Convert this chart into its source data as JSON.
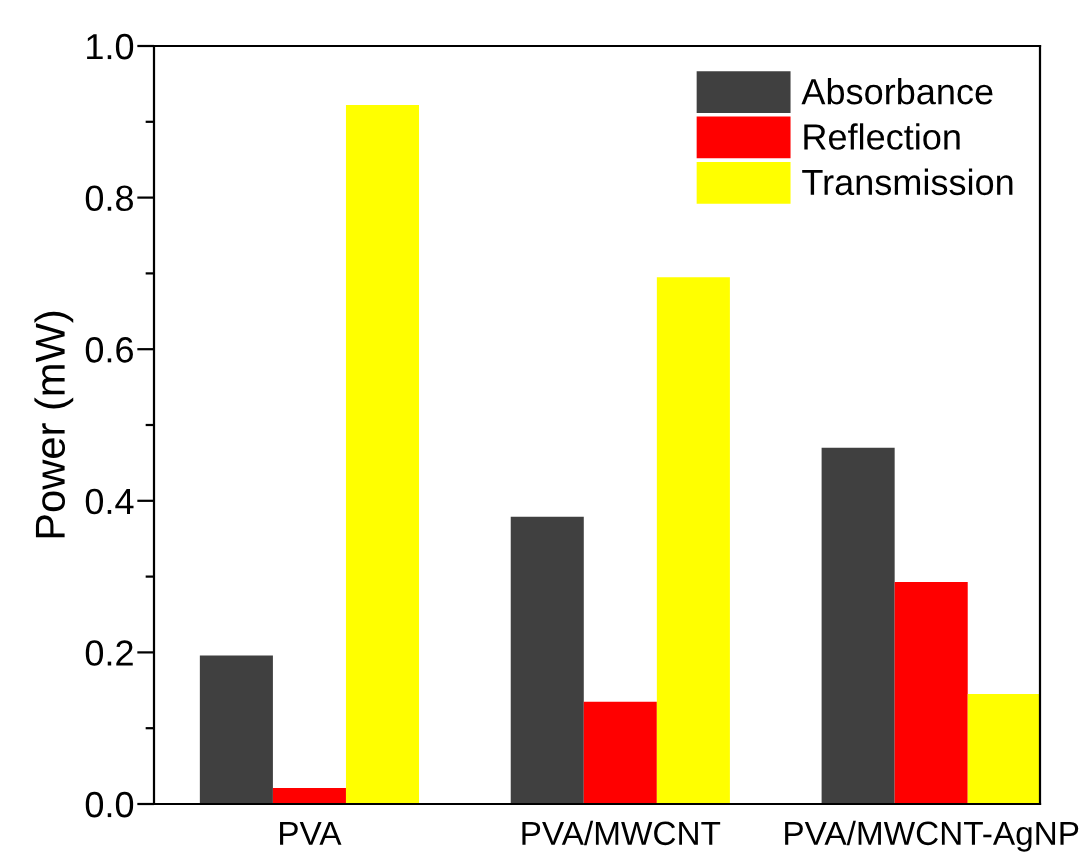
{
  "chart_data": {
    "type": "bar",
    "ylabel": "Power (mW)",
    "categories": [
      "PVA",
      "PVA/MWCNT",
      "PVA/MWCNT-AgNP"
    ],
    "series": [
      {
        "name": "Absorbance",
        "color": "#404040",
        "values": [
          0.196,
          0.379,
          0.47
        ]
      },
      {
        "name": "Reflection",
        "color": "#ff0000",
        "values": [
          0.021,
          0.135,
          0.293
        ]
      },
      {
        "name": "Transmission",
        "color": "#ffff00",
        "values": [
          0.922,
          0.695,
          0.145
        ]
      }
    ],
    "ylim": [
      0,
      1.0
    ],
    "yticks": [
      {
        "value": 0.0,
        "label": "0.0"
      },
      {
        "value": 0.1,
        "label": null
      },
      {
        "value": 0.2,
        "label": "0.2"
      },
      {
        "value": 0.3,
        "label": null
      },
      {
        "value": 0.4,
        "label": "0.4"
      },
      {
        "value": 0.5,
        "label": null
      },
      {
        "value": 0.6,
        "label": "0.6"
      },
      {
        "value": 0.7,
        "label": null
      },
      {
        "value": 0.8,
        "label": "0.8"
      },
      {
        "value": 0.9,
        "label": null
      },
      {
        "value": 1.0,
        "label": "1.0"
      }
    ],
    "grid": false,
    "legend": "top right"
  }
}
